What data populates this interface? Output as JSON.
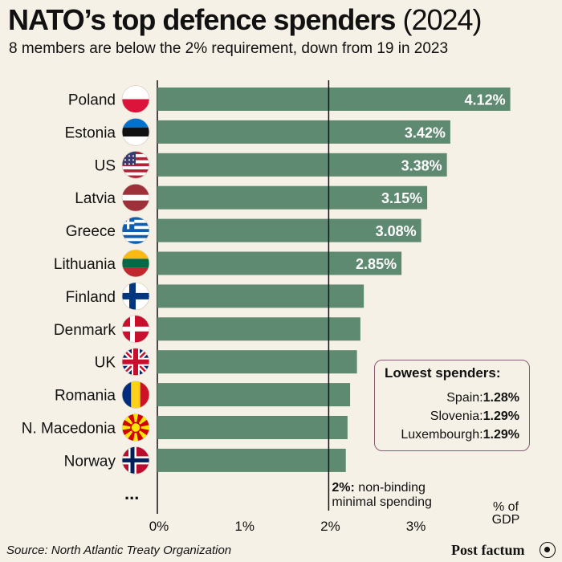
{
  "header": {
    "title": "NATO’s top defence spenders",
    "title_year": "(2024)",
    "subtitle": "8 members are below the 2% requirement, down from 19 in 2023"
  },
  "chart_data": {
    "type": "bar",
    "orientation": "horizontal",
    "categories": [
      "Poland",
      "Estonia",
      "US",
      "Latvia",
      "Greece",
      "Lithuania",
      "Finland",
      "Denmark",
      "UK",
      "Romania",
      "N. Macedonia",
      "Norway"
    ],
    "values": [
      4.12,
      3.42,
      3.38,
      3.15,
      3.08,
      2.85,
      2.41,
      2.37,
      2.33,
      2.25,
      2.22,
      2.2
    ],
    "value_labels": [
      "4.12%",
      "3.42%",
      "3.38%",
      "3.15%",
      "3.08%",
      "2.85%",
      "",
      "",
      "",
      "",
      "",
      ""
    ],
    "ellipsis_label": "...",
    "xlim": [
      0,
      4.2
    ],
    "xticks": [
      0,
      1,
      2,
      3
    ],
    "xtick_labels": [
      "0%",
      "1%",
      "2%",
      "3%"
    ],
    "xlabel_line1": "% of",
    "xlabel_line2": "GDP",
    "bar_color": "#5f8a72",
    "reference_line": {
      "value": 2,
      "label_bold": "2%:",
      "label_line1": "non-binding",
      "label_line2": "minimal spending"
    }
  },
  "inset": {
    "title": "Lowest spenders:",
    "rows": [
      {
        "name": "Spain:",
        "value": "1.28%"
      },
      {
        "name": "Slovenia:",
        "value": "1.29%"
      },
      {
        "name": "Luxembourgh:",
        "value": "1.29%"
      }
    ]
  },
  "footer": {
    "source": "Source: North Atlantic Treaty Organization",
    "brand": "Post factum"
  },
  "flags": [
    "flag-poland-icon",
    "flag-estonia-icon",
    "flag-us-icon",
    "flag-latvia-icon",
    "flag-greece-icon",
    "flag-lithuania-icon",
    "flag-finland-icon",
    "flag-denmark-icon",
    "flag-uk-icon",
    "flag-romania-icon",
    "flag-north-macedonia-icon",
    "flag-norway-icon"
  ]
}
